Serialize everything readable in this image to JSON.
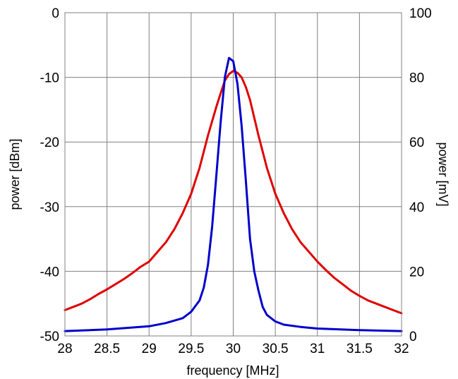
{
  "chart_data": {
    "type": "line",
    "xlabel": "frequency [MHz]",
    "ylabel_left": "power [dBm]",
    "ylabel_right": "power [mV]",
    "xlim": [
      28,
      32
    ],
    "ylim_left": [
      -50,
      0
    ],
    "ylim_right": [
      0,
      100
    ],
    "grid": true,
    "x_ticks": [
      "28",
      "28.5",
      "29",
      "29.5",
      "30",
      "30.5",
      "31",
      "31.5",
      "32"
    ],
    "y_left_ticks": [
      "0",
      "-10",
      "-20",
      "-30",
      "-40",
      "-50"
    ],
    "y_right_ticks": [
      "100",
      "80",
      "60",
      "40",
      "20",
      "0"
    ],
    "series": [
      {
        "axis": "left",
        "color": "#e00000",
        "x": [
          28.0,
          28.1,
          28.2,
          28.3,
          28.4,
          28.5,
          28.6,
          28.7,
          28.8,
          28.9,
          29.0,
          29.1,
          29.2,
          29.3,
          29.4,
          29.5,
          29.6,
          29.7,
          29.8,
          29.85,
          29.9,
          29.95,
          30.0,
          30.05,
          30.1,
          30.15,
          30.2,
          30.3,
          30.4,
          30.5,
          30.6,
          30.7,
          30.8,
          30.9,
          31.0,
          31.1,
          31.2,
          31.3,
          31.4,
          31.5,
          31.6,
          31.7,
          31.8,
          31.9,
          32.0
        ],
        "y": [
          -46.0,
          -45.5,
          -45.0,
          -44.3,
          -43.5,
          -42.8,
          -42.0,
          -41.2,
          -40.3,
          -39.3,
          -38.5,
          -37.0,
          -35.5,
          -33.5,
          -31.0,
          -28.0,
          -24.0,
          -19.0,
          -14.5,
          -12.5,
          -10.5,
          -9.5,
          -9.0,
          -9.3,
          -10.0,
          -11.5,
          -13.5,
          -19.0,
          -24.0,
          -28.0,
          -31.0,
          -33.5,
          -35.5,
          -37.0,
          -38.5,
          -39.8,
          -41.0,
          -42.0,
          -43.0,
          -43.8,
          -44.5,
          -45.0,
          -45.5,
          -46.0,
          -46.5
        ]
      },
      {
        "axis": "right",
        "color": "#0000cc",
        "x": [
          28.0,
          28.5,
          29.0,
          29.2,
          29.4,
          29.5,
          29.6,
          29.65,
          29.7,
          29.75,
          29.8,
          29.85,
          29.9,
          29.95,
          30.0,
          30.05,
          30.1,
          30.15,
          30.2,
          30.25,
          30.3,
          30.35,
          30.4,
          30.5,
          30.6,
          30.8,
          31.0,
          31.5,
          32.0
        ],
        "y": [
          1.5,
          2.0,
          3.0,
          4.0,
          5.5,
          7.5,
          11.0,
          15.0,
          22.0,
          34.0,
          50.0,
          66.0,
          80.0,
          86.0,
          85.0,
          78.0,
          65.0,
          48.0,
          30.0,
          20.0,
          14.0,
          9.0,
          6.5,
          4.5,
          3.5,
          2.8,
          2.3,
          1.8,
          1.5
        ]
      }
    ]
  }
}
